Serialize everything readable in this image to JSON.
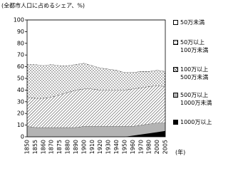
{
  "chart_data": {
    "type": "stacked-area",
    "title": "(全都市人口に占めるシェア、%)",
    "x_unit": "(年)",
    "categories": [
      "1850",
      "1855",
      "1860",
      "1870",
      "1875",
      "1880",
      "1890",
      "1900",
      "1910",
      "1920",
      "1930",
      "1940",
      "1950",
      "1960",
      "1970",
      "1980",
      "2000",
      "2005"
    ],
    "series": [
      {
        "name": "1000万以上",
        "color": "#000000",
        "pattern": "solid",
        "values": [
          0,
          0,
          0,
          0,
          0,
          0,
          0,
          0,
          0,
          0,
          0,
          0,
          0,
          1,
          2,
          3,
          4,
          5
        ]
      },
      {
        "name": "500万以上\n1000万未満",
        "color": "#b3b3b3",
        "pattern": "solid",
        "values": [
          9,
          8,
          8,
          8,
          8,
          8,
          8,
          9,
          9,
          9,
          9,
          9,
          9,
          8,
          8,
          8,
          8,
          7
        ]
      },
      {
        "name": "100万以上\n500万未満",
        "color": "#000000",
        "pattern": "hatch",
        "values": [
          25,
          25,
          25,
          26,
          28,
          30,
          32,
          32,
          32,
          31,
          31,
          31,
          31,
          32,
          32,
          32,
          32,
          31
        ]
      },
      {
        "name": "50万以上\n100万未満",
        "color": "#000000",
        "pattern": "dots",
        "values": [
          28,
          29,
          28,
          28,
          25,
          23,
          22,
          22,
          20,
          19,
          18,
          17,
          15,
          14,
          14,
          13,
          13,
          13
        ]
      },
      {
        "name": "50万未満",
        "color": "#ffffff",
        "pattern": "solid",
        "values": [
          38,
          38,
          39,
          38,
          39,
          39,
          38,
          37,
          39,
          41,
          42,
          43,
          45,
          45,
          44,
          44,
          43,
          44
        ]
      }
    ],
    "ylim": [
      0,
      100
    ],
    "yticks": [
      0,
      10,
      20,
      30,
      40,
      50,
      60,
      70,
      80,
      90,
      100
    ],
    "grid": false
  }
}
